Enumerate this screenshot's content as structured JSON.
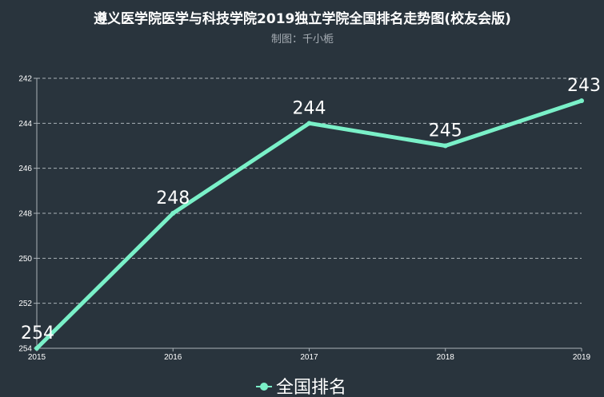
{
  "chart_data": {
    "type": "line",
    "title": "遵义医学院医学与科技学院2019独立学院全国排名走势图(校友会版)",
    "subtitle": "制图：千小栀",
    "x": [
      "2015",
      "2016",
      "2017",
      "2018",
      "2019"
    ],
    "series": [
      {
        "name": "全国排名",
        "values": [
          254,
          248,
          244,
          245,
          243
        ],
        "color": "#7af0c8"
      }
    ],
    "y_ticks": [
      "242",
      "244",
      "246",
      "248",
      "250",
      "252",
      "254"
    ],
    "ylim": [
      242,
      254
    ],
    "y_inverted": true,
    "grid": true,
    "legend_position": "bottom-center"
  }
}
